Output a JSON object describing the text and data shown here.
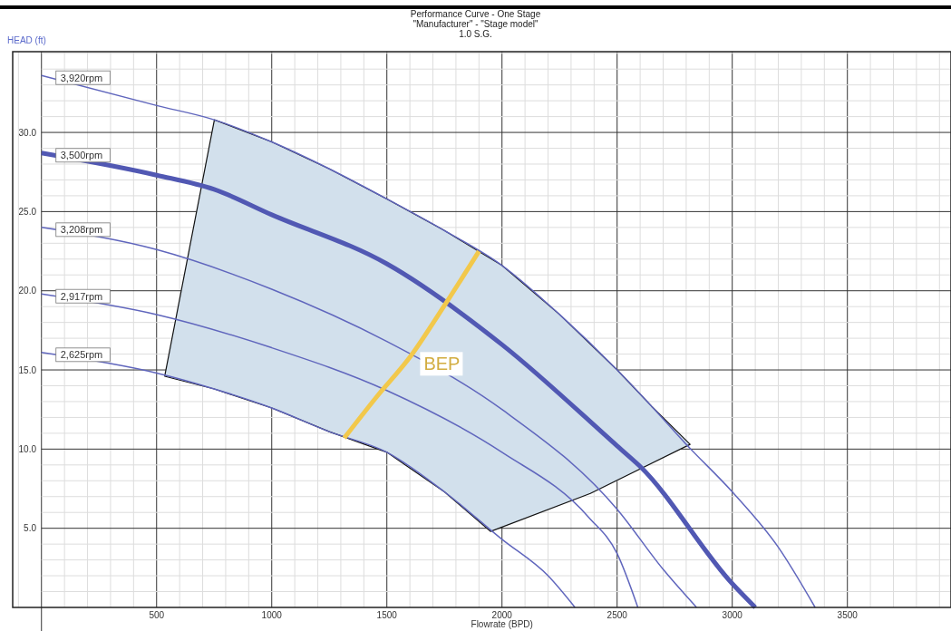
{
  "chart_data": {
    "type": "line",
    "title": "Performance Curve - One Stage",
    "subtitle": "\"Manufacturer\" - \"Stage model\"\n1.0 S.G.",
    "xlabel": "Flowrate (BPD)",
    "ylabel": "HEAD (ft)",
    "xlim": [
      -125,
      3950
    ],
    "ylim": [
      0,
      35.1
    ],
    "xticks": [
      {
        "value": -100,
        "label": null
      },
      {
        "value": 0,
        "label": null
      },
      {
        "value": 100,
        "label": null
      },
      {
        "value": 200,
        "label": null
      },
      {
        "value": 300,
        "label": null
      },
      {
        "value": 400,
        "label": null
      },
      500,
      {
        "value": 600,
        "label": null
      },
      {
        "value": 700,
        "label": null
      },
      {
        "value": 800,
        "label": null
      },
      {
        "value": 900,
        "label": null
      },
      1000,
      {
        "value": 1100,
        "label": null
      },
      {
        "value": 1200,
        "label": null
      },
      {
        "value": 1300,
        "label": null
      },
      {
        "value": 1400,
        "label": null
      },
      1500,
      {
        "value": 1600,
        "label": null
      },
      {
        "value": 1700,
        "label": null
      },
      {
        "value": 1800,
        "label": null
      },
      {
        "value": 1900,
        "label": null
      },
      2000,
      {
        "value": 2100,
        "label": null
      },
      {
        "value": 2200,
        "label": null
      },
      {
        "value": 2300,
        "label": null
      },
      {
        "value": 2400,
        "label": null
      },
      2500,
      {
        "value": 2600,
        "label": null
      },
      {
        "value": 2700,
        "label": null
      },
      {
        "value": 2800,
        "label": null
      },
      {
        "value": 2900,
        "label": null
      },
      3000,
      {
        "value": 3100,
        "label": null
      },
      {
        "value": 3200,
        "label": null
      },
      {
        "value": 3300,
        "label": null
      },
      {
        "value": 3400,
        "label": null
      },
      3500,
      {
        "value": 3600,
        "label": null
      },
      {
        "value": 3700,
        "label": null
      },
      {
        "value": 3800,
        "label": null
      },
      {
        "value": 3900,
        "label": null
      }
    ],
    "yticks": [
      {
        "value": 1,
        "label": null
      },
      {
        "value": 2,
        "label": null
      },
      {
        "value": 3,
        "label": null
      },
      {
        "value": 4,
        "label": null
      },
      {
        "value": 5,
        "label": "5.0"
      },
      {
        "value": 6,
        "label": null
      },
      {
        "value": 7,
        "label": null
      },
      {
        "value": 8,
        "label": null
      },
      {
        "value": 9,
        "label": null
      },
      {
        "value": 10,
        "label": "10.0"
      },
      {
        "value": 11,
        "label": null
      },
      {
        "value": 12,
        "label": null
      },
      {
        "value": 13,
        "label": null
      },
      {
        "value": 14,
        "label": null
      },
      {
        "value": 15,
        "label": "15.0"
      },
      {
        "value": 16,
        "label": null
      },
      {
        "value": 17,
        "label": null
      },
      {
        "value": 18,
        "label": null
      },
      {
        "value": 19,
        "label": null
      },
      {
        "value": 20,
        "label": "20.0"
      },
      {
        "value": 21,
        "label": null
      },
      {
        "value": 22,
        "label": null
      },
      {
        "value": 23,
        "label": null
      },
      {
        "value": 24,
        "label": null
      },
      {
        "value": 25,
        "label": "25.0"
      },
      {
        "value": 26,
        "label": null
      },
      {
        "value": 27,
        "label": null
      },
      {
        "value": 28,
        "label": null
      },
      {
        "value": 29,
        "label": null
      },
      {
        "value": 30,
        "label": "30.0"
      },
      {
        "value": 31,
        "label": null
      },
      {
        "value": 32,
        "label": null
      },
      {
        "value": 33,
        "label": null
      },
      {
        "value": 34,
        "label": null
      },
      {
        "value": 35,
        "label": null
      }
    ],
    "grid": true,
    "marker": "none",
    "line_style": "solid",
    "series": [
      {
        "type": "area",
        "color": "#d2e0ec",
        "x": [
          535,
          751,
          1000,
          1250,
          1500,
          1750,
          2000,
          2250,
          2500,
          2650,
          2817,
          2384,
          1951,
          1750,
          1500,
          1250,
          1000,
          750,
          535
        ],
        "values": [
          14.6,
          30.8,
          29.4,
          27.7,
          25.8,
          23.8,
          21.6,
          18.5,
          15.0,
          12.7,
          10.3,
          7.2,
          4.8,
          7.3,
          9.8,
          11.1,
          12.6,
          13.8,
          14.6
        ]
      },
      {
        "name": "3,920rpm",
        "color": "#6066bd",
        "x": [
          0,
          500,
          750,
          1000,
          1250,
          1500,
          1750,
          2000,
          2250,
          2500,
          2650,
          2800,
          3000,
          3200,
          3360
        ],
        "values": [
          33.6,
          31.7,
          30.8,
          29.4,
          27.7,
          25.8,
          23.8,
          21.6,
          18.5,
          15.0,
          12.7,
          10.3,
          7.3,
          3.8,
          0
        ]
      },
      {
        "name": "3,500rpm",
        "color": "#5158b3",
        "x": [
          0,
          500,
          750,
          1000,
          1500,
          2000,
          2500,
          2600,
          3000,
          3100
        ],
        "values": [
          28.7,
          27.3,
          26.4,
          24.8,
          21.7,
          16.6,
          10.2,
          8.9,
          1.5,
          0
        ]
      },
      {
        "name": "3,208rpm",
        "color": "#6066bd",
        "x": [
          0,
          500,
          1000,
          1500,
          2000,
          2500,
          2700,
          2845
        ],
        "values": [
          24.0,
          22.6,
          20.1,
          16.8,
          12.5,
          6.2,
          2.4,
          0
        ]
      },
      {
        "name": "2,917rpm",
        "color": "#6066bd",
        "x": [
          0,
          500,
          1000,
          1500,
          2000,
          2376,
          2500,
          2590
        ],
        "values": [
          19.8,
          18.5,
          16.4,
          13.7,
          9.8,
          5.7,
          3.4,
          0
        ]
      },
      {
        "name": "2,625rpm",
        "color": "#6066bd",
        "x": [
          0,
          500,
          750,
          1000,
          1250,
          1500,
          1750,
          2000,
          2200,
          2317
        ],
        "values": [
          16.1,
          14.8,
          13.8,
          12.6,
          11.1,
          9.8,
          7.3,
          4.3,
          2.0,
          0
        ]
      },
      {
        "name": "BEP",
        "color": "#f2c84b",
        "x": [
          1315,
          1450,
          1605,
          1747,
          1900
        ],
        "values": [
          10.7,
          13.2,
          15.9,
          19.0,
          22.5
        ]
      }
    ]
  }
}
